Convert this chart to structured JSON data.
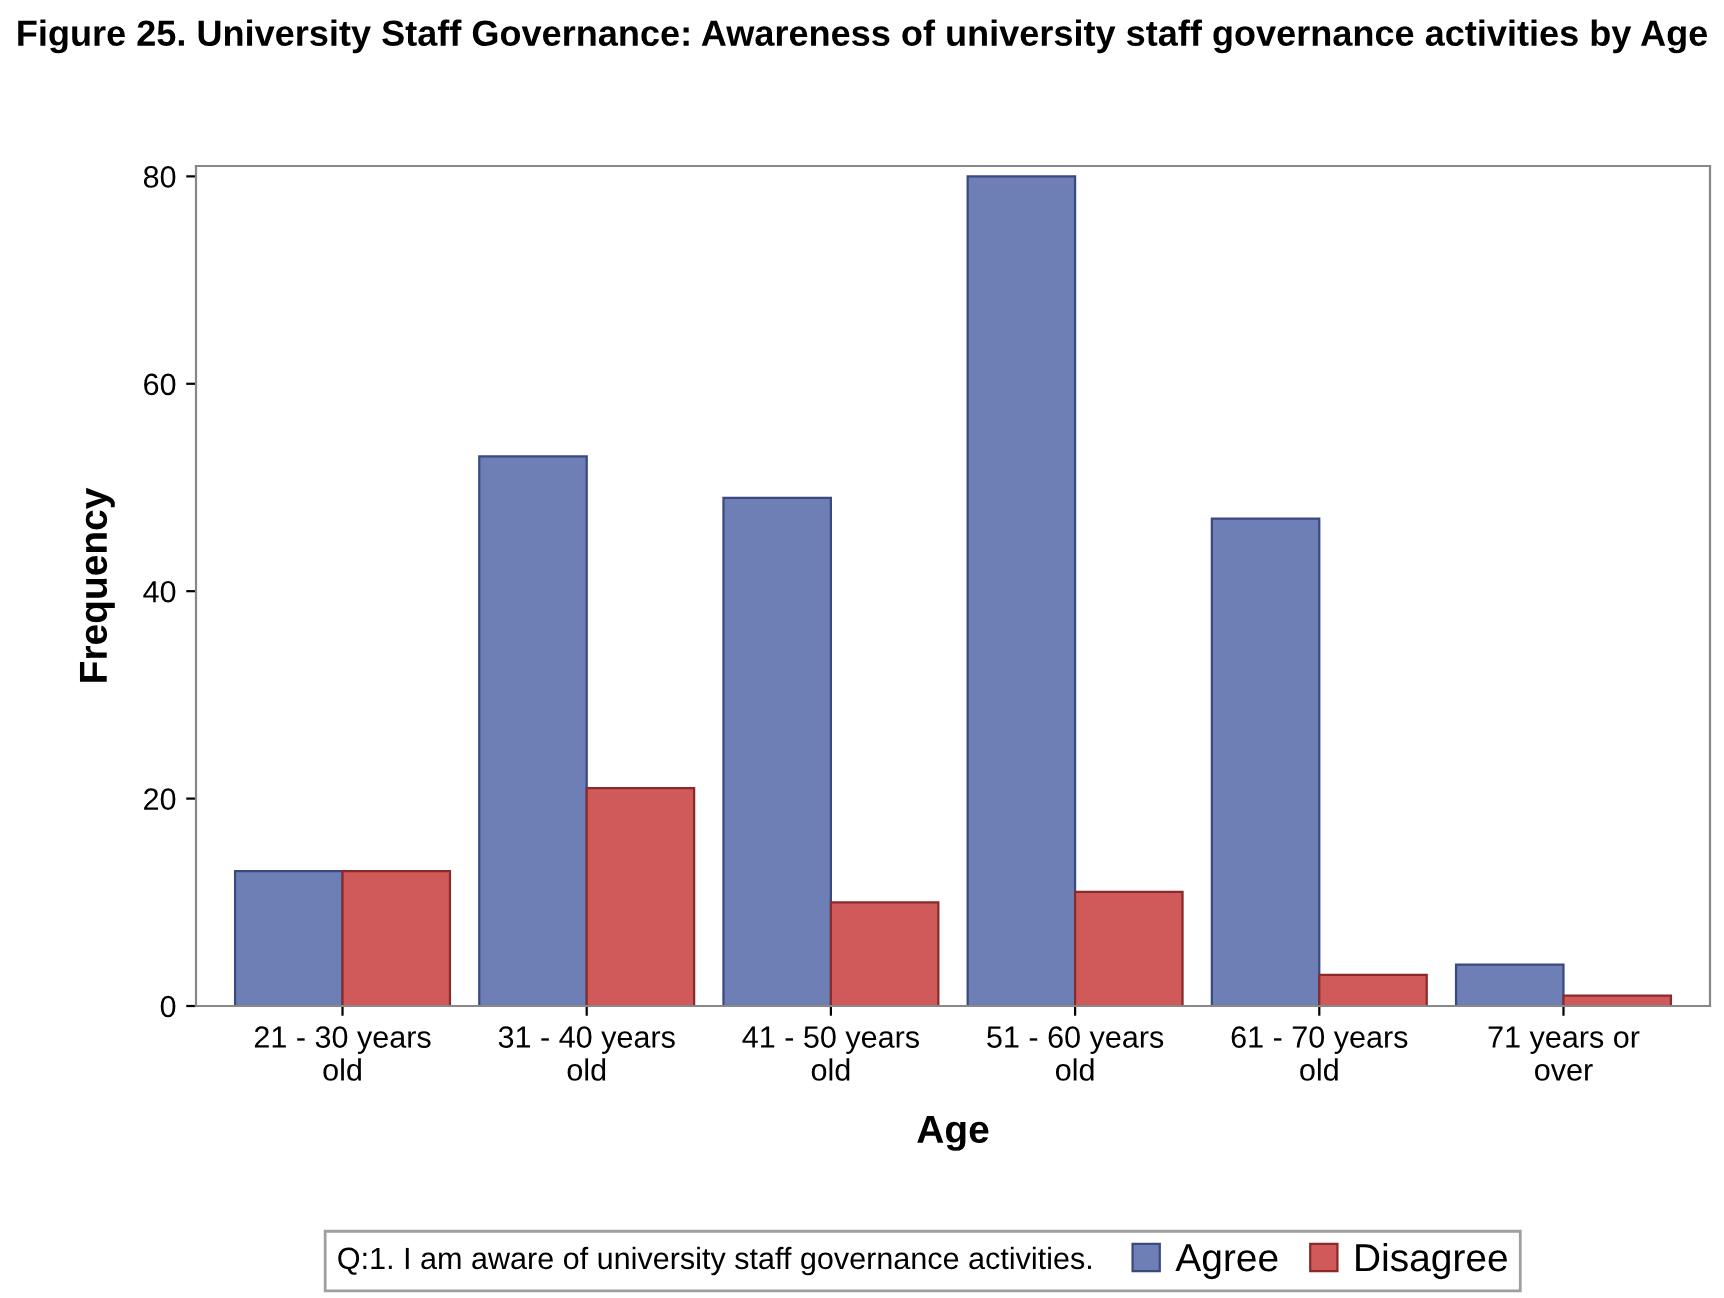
{
  "chart_data": {
    "type": "bar",
    "title": "Figure 25. University Staff Governance: Awareness of university staff governance activities by Age",
    "xlabel": "Age",
    "ylabel": "Frequency",
    "legend_title": "Q:1. I am aware of university staff governance activities.",
    "categories": [
      "21 - 30 years old",
      "31 - 40 years old",
      "41 - 50 years old",
      "51 - 60 years old",
      "61 - 70 years old",
      "71 years or over"
    ],
    "series": [
      {
        "name": "Agree",
        "color": "#6e7fb5",
        "values": [
          13,
          53,
          49,
          80,
          47,
          4
        ]
      },
      {
        "name": "Disagree",
        "color": "#d05a5a",
        "values": [
          13,
          21,
          10,
          11,
          3,
          1
        ]
      }
    ],
    "ylim": [
      0,
      81
    ],
    "yticks": [
      0,
      20,
      40,
      60,
      80
    ],
    "grid": false,
    "legend": "bottom"
  }
}
